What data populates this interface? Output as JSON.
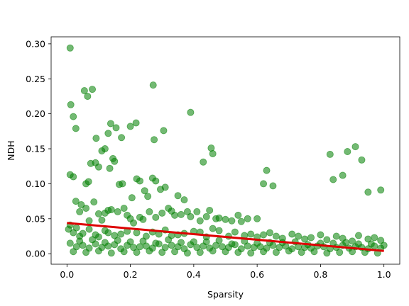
{
  "chart_data": {
    "type": "scatter",
    "title": "",
    "xlabel": "Sparsity",
    "ylabel": "NDH",
    "xlim": [
      -0.05,
      1.05
    ],
    "ylim": [
      -0.015,
      0.31
    ],
    "xticks": [
      0.0,
      0.2,
      0.4,
      0.6,
      0.8,
      1.0
    ],
    "xtick_labels": [
      "0.0",
      "0.2",
      "0.4",
      "0.6",
      "0.8",
      "1.0"
    ],
    "yticks": [
      0.0,
      0.05,
      0.1,
      0.15,
      0.2,
      0.25,
      0.3
    ],
    "ytick_labels": [
      "0.00",
      "0.05",
      "0.10",
      "0.15",
      "0.20",
      "0.25",
      "0.30"
    ],
    "grid": false,
    "legend": "none",
    "colors": {
      "points": "#008000",
      "point_alpha": 0.55,
      "trend": "#dd0000"
    },
    "trend_line": {
      "x": [
        0.0,
        1.0
      ],
      "y": [
        0.044,
        0.004
      ]
    },
    "series": [
      {
        "x": [
          0.01,
          0.012,
          0.02,
          0.028,
          0.055,
          0.065,
          0.08,
          0.092,
          0.13,
          0.138,
          0.155,
          0.172,
          0.2,
          0.218,
          0.272,
          0.275,
          0.305,
          0.39,
          0.01,
          0.02,
          0.028,
          0.045,
          0.06,
          0.068,
          0.075,
          0.09,
          0.1,
          0.11,
          0.12,
          0.135,
          0.145,
          0.15,
          0.165,
          0.175,
          0.205,
          0.22,
          0.23,
          0.245,
          0.255,
          0.27,
          0.28,
          0.295,
          0.31,
          0.35,
          0.37,
          0.43,
          0.455,
          0.46,
          0.885,
          0.91,
          0.93,
          0.005,
          0.01,
          0.03,
          0.04,
          0.06,
          0.07,
          0.085,
          0.1,
          0.11,
          0.12,
          0.13,
          0.14,
          0.16,
          0.18,
          0.19,
          0.2,
          0.21,
          0.23,
          0.24,
          0.26,
          0.28,
          0.3,
          0.32,
          0.33,
          0.34,
          0.36,
          0.38,
          0.39,
          0.41,
          0.42,
          0.44,
          0.45,
          0.47,
          0.48,
          0.5,
          0.52,
          0.54,
          0.55,
          0.57,
          0.6,
          0.62,
          0.63,
          0.65,
          0.83,
          0.84,
          0.87,
          0.95,
          0.99,
          0.02,
          0.04,
          0.05,
          0.07,
          0.09,
          0.1,
          0.12,
          0.13,
          0.15,
          0.17,
          0.19,
          0.22,
          0.25,
          0.27,
          0.29,
          0.31,
          0.33,
          0.35,
          0.37,
          0.4,
          0.42,
          0.44,
          0.46,
          0.48,
          0.51,
          0.53,
          0.56,
          0.58,
          0.6,
          0.62,
          0.64,
          0.66,
          0.68,
          0.71,
          0.73,
          0.75,
          0.77,
          0.8,
          0.82,
          0.85,
          0.87,
          0.9,
          0.92,
          0.95,
          0.97,
          0.99,
          0.01,
          0.03,
          0.05,
          0.07,
          0.09,
          0.11,
          0.13,
          0.15,
          0.17,
          0.19,
          0.21,
          0.23,
          0.25,
          0.27,
          0.29,
          0.31,
          0.33,
          0.35,
          0.37,
          0.39,
          0.41,
          0.43,
          0.45,
          0.47,
          0.49,
          0.51,
          0.53,
          0.55,
          0.57,
          0.59,
          0.61,
          0.63,
          0.65,
          0.67,
          0.69,
          0.71,
          0.73,
          0.75,
          0.77,
          0.79,
          0.81,
          0.83,
          0.85,
          0.87,
          0.89,
          0.91,
          0.93,
          0.95,
          0.97,
          0.99,
          0.02,
          0.06,
          0.1,
          0.14,
          0.18,
          0.22,
          0.26,
          0.3,
          0.34,
          0.38,
          0.42,
          0.46,
          0.5,
          0.54,
          0.58,
          0.62,
          0.66,
          0.7,
          0.74,
          0.78,
          0.82,
          0.86,
          0.9,
          0.94,
          0.98,
          0.04,
          0.12,
          0.2,
          0.28,
          0.36,
          0.44,
          0.52,
          0.6,
          0.68,
          0.76,
          0.84,
          0.92,
          1.0,
          0.08,
          0.16,
          0.24,
          0.32,
          0.4,
          0.48,
          0.56,
          0.64,
          0.72,
          0.8,
          0.88,
          0.96
        ],
        "y": [
          0.294,
          0.213,
          0.196,
          0.179,
          0.233,
          0.225,
          0.235,
          0.165,
          0.172,
          0.186,
          0.18,
          0.166,
          0.182,
          0.187,
          0.241,
          0.163,
          0.176,
          0.202,
          0.113,
          0.11,
          0.075,
          0.07,
          0.1,
          0.103,
          0.129,
          0.13,
          0.124,
          0.147,
          0.15,
          0.122,
          0.136,
          0.132,
          0.099,
          0.1,
          0.08,
          0.107,
          0.104,
          0.09,
          0.082,
          0.108,
          0.104,
          0.092,
          0.095,
          0.083,
          0.077,
          0.131,
          0.151,
          0.143,
          0.146,
          0.153,
          0.134,
          0.035,
          0.041,
          0.037,
          0.06,
          0.065,
          0.047,
          0.074,
          0.057,
          0.048,
          0.058,
          0.062,
          0.063,
          0.06,
          0.065,
          0.055,
          0.05,
          0.044,
          0.052,
          0.049,
          0.06,
          0.052,
          0.058,
          0.065,
          0.061,
          0.055,
          0.056,
          0.06,
          0.053,
          0.06,
          0.047,
          0.053,
          0.062,
          0.05,
          0.051,
          0.049,
          0.047,
          0.055,
          0.046,
          0.05,
          0.05,
          0.1,
          0.119,
          0.097,
          0.142,
          0.106,
          0.112,
          0.088,
          0.091,
          0.03,
          0.025,
          0.029,
          0.035,
          0.027,
          0.024,
          0.033,
          0.03,
          0.026,
          0.028,
          0.032,
          0.03,
          0.025,
          0.031,
          0.028,
          0.034,
          0.026,
          0.027,
          0.029,
          0.032,
          0.031,
          0.024,
          0.036,
          0.033,
          0.025,
          0.031,
          0.026,
          0.028,
          0.024,
          0.027,
          0.03,
          0.025,
          0.022,
          0.028,
          0.025,
          0.021,
          0.023,
          0.027,
          0.02,
          0.025,
          0.022,
          0.018,
          0.026,
          0.021,
          0.023,
          0.019,
          0.015,
          0.01,
          0.012,
          0.008,
          0.014,
          0.009,
          0.011,
          0.013,
          0.007,
          0.012,
          0.009,
          0.01,
          0.011,
          0.008,
          0.014,
          0.009,
          0.012,
          0.01,
          0.007,
          0.013,
          0.009,
          0.011,
          0.008,
          0.012,
          0.01,
          0.009,
          0.013,
          0.007,
          0.011,
          0.009,
          0.01,
          0.008,
          0.012,
          0.009,
          0.011,
          0.007,
          0.01,
          0.009,
          0.008,
          0.011,
          0.01,
          0.007,
          0.009,
          0.012,
          0.008,
          0.01,
          0.009,
          0.007,
          0.011,
          0.008,
          0.003,
          0.002,
          0.004,
          0.001,
          0.003,
          0.002,
          0.004,
          0.002,
          0.003,
          0.001,
          0.002,
          0.004,
          0.003,
          0.002,
          0.001,
          0.003,
          0.002,
          0.004,
          0.002,
          0.003,
          0.001,
          0.002,
          0.003,
          0.002,
          0.001,
          0.018,
          0.016,
          0.017,
          0.015,
          0.016,
          0.017,
          0.014,
          0.015,
          0.016,
          0.013,
          0.015,
          0.014,
          0.012,
          0.02,
          0.019,
          0.018,
          0.02,
          0.017,
          0.019,
          0.018,
          0.016,
          0.017,
          0.015,
          0.016,
          0.014
        ]
      }
    ]
  }
}
